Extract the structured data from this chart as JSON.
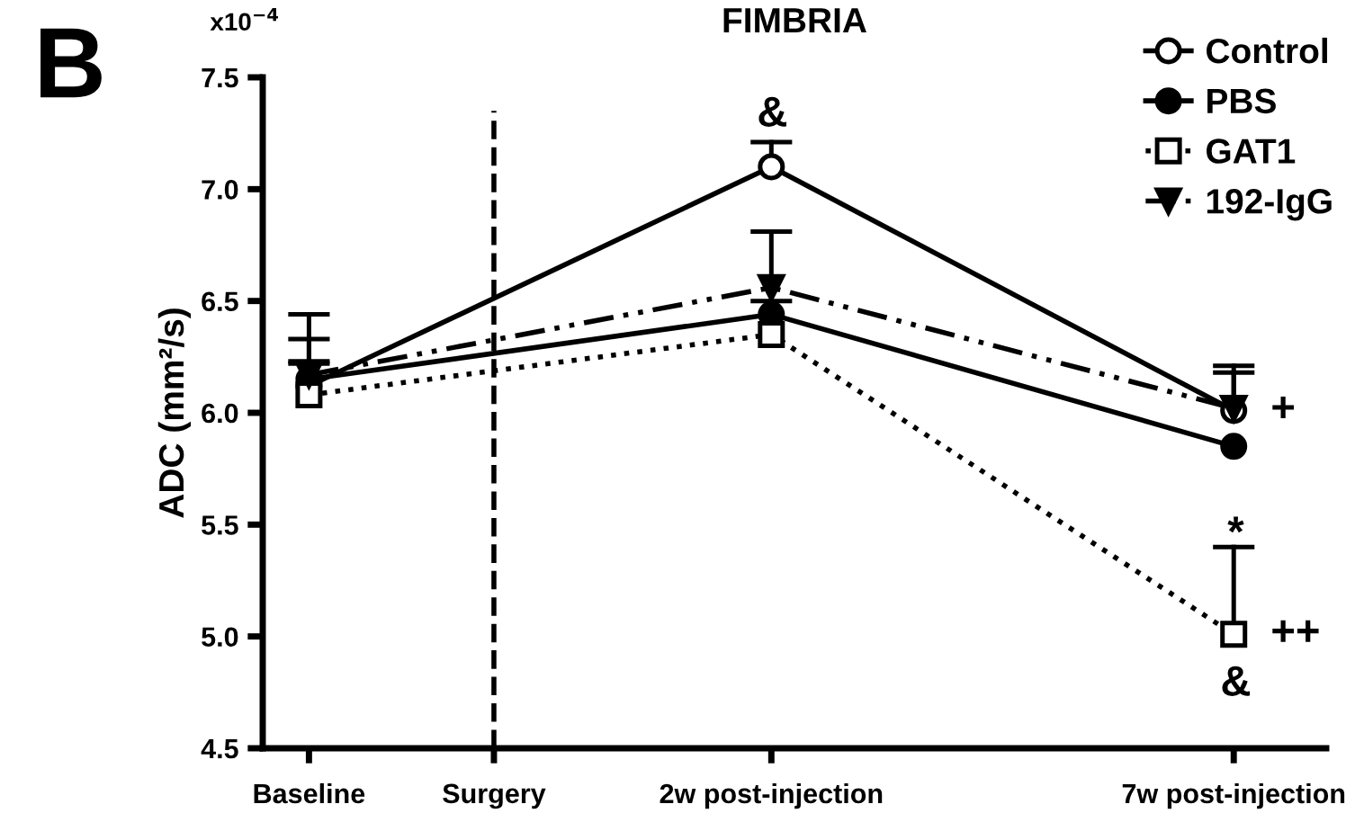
{
  "chart_data": {
    "type": "line",
    "title": "FIMBRIA",
    "ylabel": "ADC (mm²/s)",
    "x": [
      -3,
      2,
      7
    ],
    "xlim": [
      -3.5,
      8
    ],
    "xticks": [
      {
        "value": -3,
        "label": "Baseline"
      },
      {
        "value": -1,
        "label": "Surgery"
      },
      {
        "value": 2,
        "label": "2w post-injection"
      },
      {
        "value": 7,
        "label": "7w post-injection"
      }
    ],
    "ylim": [
      4.5,
      7.5
    ],
    "yticks": [
      {
        "value": 4.5,
        "label": "4.5"
      },
      {
        "value": 5,
        "label": "5.0"
      },
      {
        "value": 5.5,
        "label": "5.5"
      },
      {
        "value": 6,
        "label": "6.0"
      },
      {
        "value": 6.5,
        "label": "6.5"
      },
      {
        "value": 7,
        "label": "7.0"
      },
      {
        "value": 7.5,
        "label": "7.5"
      }
    ],
    "series": [
      {
        "name": "Control",
        "color": "#000000",
        "values": [
          6.12,
          7.1,
          6.01
        ],
        "errors": [
          [
            6.12,
            6.22
          ],
          [
            7.1,
            7.21
          ],
          [
            6.01,
            6.18
          ]
        ],
        "marker": "circle",
        "line_style": "solid"
      },
      {
        "name": "PBS",
        "color": "#000000",
        "values": [
          6.15,
          6.44,
          5.85
        ],
        "errors": [
          [
            6.15,
            6.23
          ],
          [
            6.44,
            6.5
          ],
          null
        ],
        "marker": "circle",
        "line_style": "solid"
      },
      {
        "name": "GAT1",
        "color": "#000000",
        "values": [
          6.08,
          6.35,
          5.01
        ],
        "errors": [
          [
            6.08,
            6.33
          ],
          null,
          [
            5.01,
            5.4
          ]
        ],
        "marker": "square",
        "line_style": "dotted"
      },
      {
        "name": "192-IgG",
        "color": "#000000",
        "values": [
          6.17,
          6.56,
          6.02
        ],
        "errors": [
          [
            6.17,
            6.44
          ],
          [
            6.56,
            6.81
          ],
          [
            6.02,
            6.21
          ]
        ],
        "marker": "triangle_down",
        "line_style": "dashdot"
      }
    ],
    "ref_lines": [
      {
        "axis": "x",
        "value": -1,
        "label": null,
        "color": "#000000",
        "line_style": "dashed"
      }
    ],
    "annotations": [
      "B",
      "x10$^{−4}$",
      "&",
      "*",
      "&",
      {
        "text": "+",
        "x": 7,
        "y": 6.01
      },
      {
        "text": "++",
        "x": 7,
        "y": 5.01
      }
    ],
    "grid": false,
    "legend": "top right"
  }
}
